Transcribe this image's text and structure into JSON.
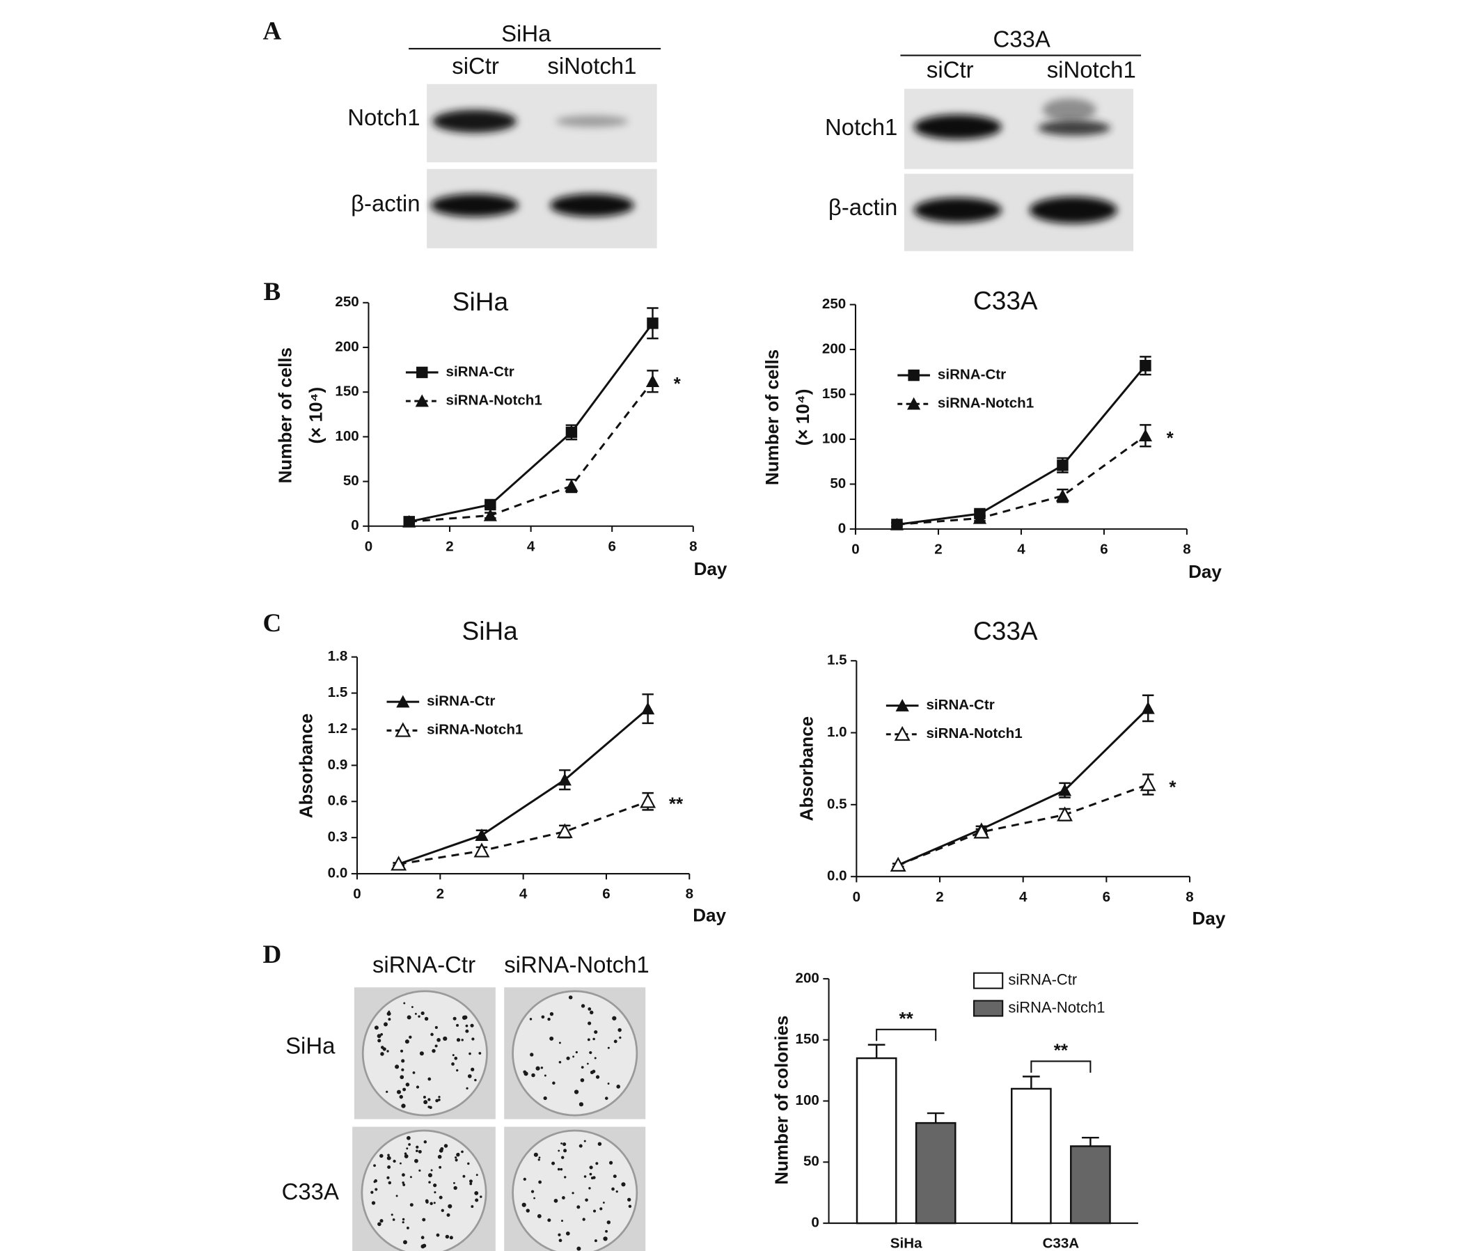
{
  "panel_labels": [
    "A",
    "B",
    "C",
    "D"
  ],
  "blots": [
    {
      "cell_line": "SiHa",
      "lanes": [
        "siCtr",
        "siNotch1"
      ],
      "proteins": [
        "Notch1",
        "β-actin"
      ]
    },
    {
      "cell_line": "C33A",
      "lanes": [
        "siCtr",
        "siNotch1"
      ],
      "proteins": [
        "Notch1",
        "β-actin"
      ]
    }
  ],
  "colony_assay": {
    "columns": [
      "siRNA-Ctr",
      "siRNA-Notch1"
    ],
    "rows": [
      "SiHa",
      "C33A"
    ]
  },
  "chart_data": [
    {
      "type": "line",
      "title": "SiHa",
      "xlabel": "Day",
      "ylabel": "Number of cells",
      "ylabel_unit": "(× 10⁴)",
      "x": [
        1,
        3,
        5,
        7
      ],
      "xlim": [
        0,
        8
      ],
      "xticks": [
        0,
        2,
        4,
        6,
        8
      ],
      "ylim": [
        0,
        250
      ],
      "yticks": [
        0,
        50,
        100,
        150,
        200,
        250
      ],
      "series": [
        {
          "name": "siRNA-Ctr",
          "color": "#111111",
          "marker": "square",
          "line_style": "solid",
          "values": [
            5,
            24,
            105,
            227
          ],
          "errors": [
            2,
            3,
            8,
            17
          ]
        },
        {
          "name": "siRNA-Notch1",
          "color": "#111111",
          "marker": "triangle",
          "line_style": "dashed",
          "values": [
            5,
            12,
            45,
            162
          ],
          "errors": [
            2,
            3,
            7,
            12
          ]
        }
      ],
      "annotation": "*"
    },
    {
      "type": "line",
      "title": "C33A",
      "xlabel": "Day",
      "ylabel": "Number of cells",
      "ylabel_unit": "(× 10⁴)",
      "x": [
        1,
        3,
        5,
        7
      ],
      "xlim": [
        0,
        8
      ],
      "xticks": [
        0,
        2,
        4,
        6,
        8
      ],
      "ylim": [
        0,
        250
      ],
      "yticks": [
        0,
        50,
        100,
        150,
        200,
        250
      ],
      "series": [
        {
          "name": "siRNA-Ctr",
          "color": "#111111",
          "marker": "square",
          "line_style": "solid",
          "values": [
            5,
            17,
            71,
            182
          ],
          "errors": [
            2,
            3,
            8,
            10
          ]
        },
        {
          "name": "siRNA-Notch1",
          "color": "#111111",
          "marker": "triangle",
          "line_style": "dashed",
          "values": [
            5,
            12,
            37,
            104
          ],
          "errors": [
            2,
            3,
            7,
            12
          ]
        }
      ],
      "annotation": "*"
    },
    {
      "type": "line",
      "title": "SiHa",
      "xlabel": "Day",
      "ylabel": "Absorbance",
      "x": [
        1,
        3,
        5,
        7
      ],
      "xlim": [
        0,
        8
      ],
      "xticks": [
        0,
        2,
        4,
        6,
        8
      ],
      "ylim": [
        0,
        1.8
      ],
      "yticks": [
        {
          "value": 0,
          "label": "0.0"
        },
        0.3,
        0.6,
        0.9,
        1.2,
        1.5,
        1.8
      ],
      "series": [
        {
          "name": "siRNA-Ctr",
          "color": "#111111",
          "marker": "triangle",
          "line_style": "solid",
          "values": [
            0.08,
            0.32,
            0.78,
            1.37
          ],
          "errors": [
            0.01,
            0.04,
            0.08,
            0.12
          ]
        },
        {
          "name": "siRNA-Notch1",
          "color": "#111111",
          "marker": "open-triangle",
          "line_style": "dashed",
          "values": [
            0.08,
            0.19,
            0.35,
            0.6
          ],
          "errors": [
            0.01,
            0.03,
            0.05,
            0.07
          ]
        }
      ],
      "annotation": "**"
    },
    {
      "type": "line",
      "title": "C33A",
      "xlabel": "Day",
      "ylabel": "Absorbance",
      "x": [
        1,
        3,
        5,
        7
      ],
      "xlim": [
        0,
        8
      ],
      "xticks": [
        0,
        2,
        4,
        6,
        8
      ],
      "ylim": [
        0,
        1.5
      ],
      "yticks": [
        {
          "value": 0,
          "label": "0.0"
        },
        0.5,
        {
          "value": 1,
          "label": "1.0"
        },
        1.5
      ],
      "series": [
        {
          "name": "siRNA-Ctr",
          "color": "#111111",
          "marker": "triangle",
          "line_style": "solid",
          "values": [
            0.08,
            0.33,
            0.6,
            1.17
          ],
          "errors": [
            0.01,
            0.02,
            0.05,
            0.09
          ]
        },
        {
          "name": "siRNA-Notch1",
          "color": "#111111",
          "marker": "open-triangle",
          "line_style": "dashed",
          "values": [
            0.08,
            0.31,
            0.43,
            0.64
          ],
          "errors": [
            0.01,
            0.02,
            0.04,
            0.07
          ]
        }
      ],
      "annotation": "*"
    },
    {
      "type": "bar",
      "ylabel": "Number of colonies",
      "categories": [
        "SiHa",
        "C33A"
      ],
      "ylim": [
        0,
        200
      ],
      "yticks": [
        0,
        50,
        100,
        150,
        200
      ],
      "series": [
        {
          "name": "siRNA-Ctr",
          "color": "#ffffff",
          "values": [
            135,
            110
          ],
          "errors": [
            11,
            10
          ]
        },
        {
          "name": "siRNA-Notch1",
          "color": "#666666",
          "values": [
            82,
            63
          ],
          "errors": [
            8,
            7
          ]
        }
      ],
      "annotations": [
        "**",
        "**"
      ],
      "legend": "upper right"
    }
  ]
}
